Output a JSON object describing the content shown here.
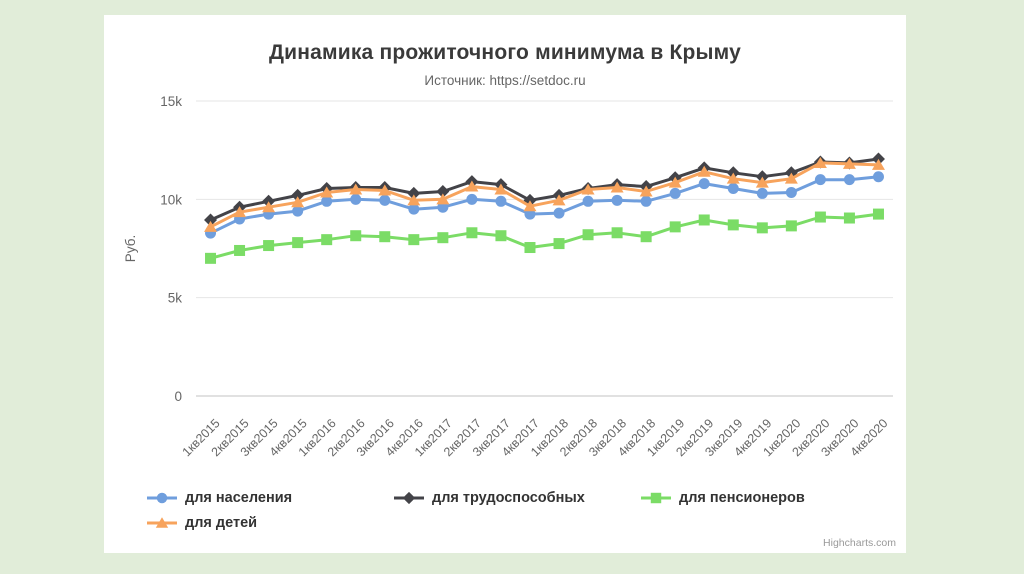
{
  "page": {
    "background_color": "#e1edd9",
    "card_color": "#ffffff"
  },
  "header": {
    "title": "Динамика прожиточного минимума в Крыму",
    "subtitle": "Источник: https://setdoc.ru"
  },
  "credit": "Highcharts.com",
  "chart_data": {
    "type": "line",
    "title": "Динамика прожиточного минимума в Крыму",
    "subtitle": "Источник: https://setdoc.ru",
    "xlabel": "",
    "ylabel": "Руб.",
    "ylim": [
      0,
      15000
    ],
    "grid": true,
    "legend_position": "bottom",
    "yticks": [
      {
        "value": 0,
        "label": "0"
      },
      {
        "value": 5000,
        "label": "5k"
      },
      {
        "value": 10000,
        "label": "10k"
      },
      {
        "value": 15000,
        "label": "15k"
      }
    ],
    "categories": [
      "1кв2015",
      "2кв2015",
      "3кв2015",
      "4кв2015",
      "1кв2016",
      "2кв2016",
      "3кв2016",
      "4кв2016",
      "1кв2017",
      "2кв2017",
      "3кв2017",
      "4кв2017",
      "1кв2018",
      "2кв2018",
      "3кв2018",
      "4кв2018",
      "1кв2019",
      "2кв2019",
      "3кв2019",
      "4кв2019",
      "1кв2020",
      "2кв2020",
      "3кв2020",
      "4кв2020"
    ],
    "series": [
      {
        "name": "для населения",
        "marker": "circle",
        "color": "#6f9edd",
        "values": [
          8280,
          9000,
          9250,
          9400,
          9900,
          10000,
          9950,
          9500,
          9600,
          10000,
          9900,
          9250,
          9300,
          9900,
          9950,
          9900,
          10300,
          10800,
          10550,
          10300,
          10350,
          11000,
          11000,
          11150
        ]
      },
      {
        "name": "для трудоспособных",
        "marker": "diamond",
        "color": "#434348",
        "values": [
          8950,
          9600,
          9900,
          10200,
          10550,
          10600,
          10600,
          10300,
          10400,
          10900,
          10750,
          9950,
          10200,
          10550,
          10750,
          10650,
          11100,
          11600,
          11350,
          11150,
          11350,
          11900,
          11850,
          12050
        ]
      },
      {
        "name": "для пенсионеров",
        "marker": "square",
        "color": "#7bdc66",
        "values": [
          7000,
          7400,
          7650,
          7800,
          7950,
          8150,
          8100,
          7950,
          8050,
          8300,
          8150,
          7550,
          7750,
          8200,
          8300,
          8100,
          8600,
          8950,
          8700,
          8550,
          8650,
          9100,
          9050,
          9250
        ]
      },
      {
        "name": "для детей",
        "marker": "triangle",
        "color": "#f7a35c",
        "values": [
          8600,
          9350,
          9600,
          9850,
          10350,
          10500,
          10450,
          9950,
          10000,
          10650,
          10500,
          9650,
          9950,
          10500,
          10600,
          10400,
          10850,
          11400,
          11050,
          10850,
          11050,
          11850,
          11800,
          11750
        ]
      }
    ],
    "style": {
      "grid_color": "#e6e6e6",
      "axis_line_color": "#c3c3c3",
      "tick_label_color": "#666666",
      "axis_title_color": "#666666",
      "line_width": 3
    }
  }
}
